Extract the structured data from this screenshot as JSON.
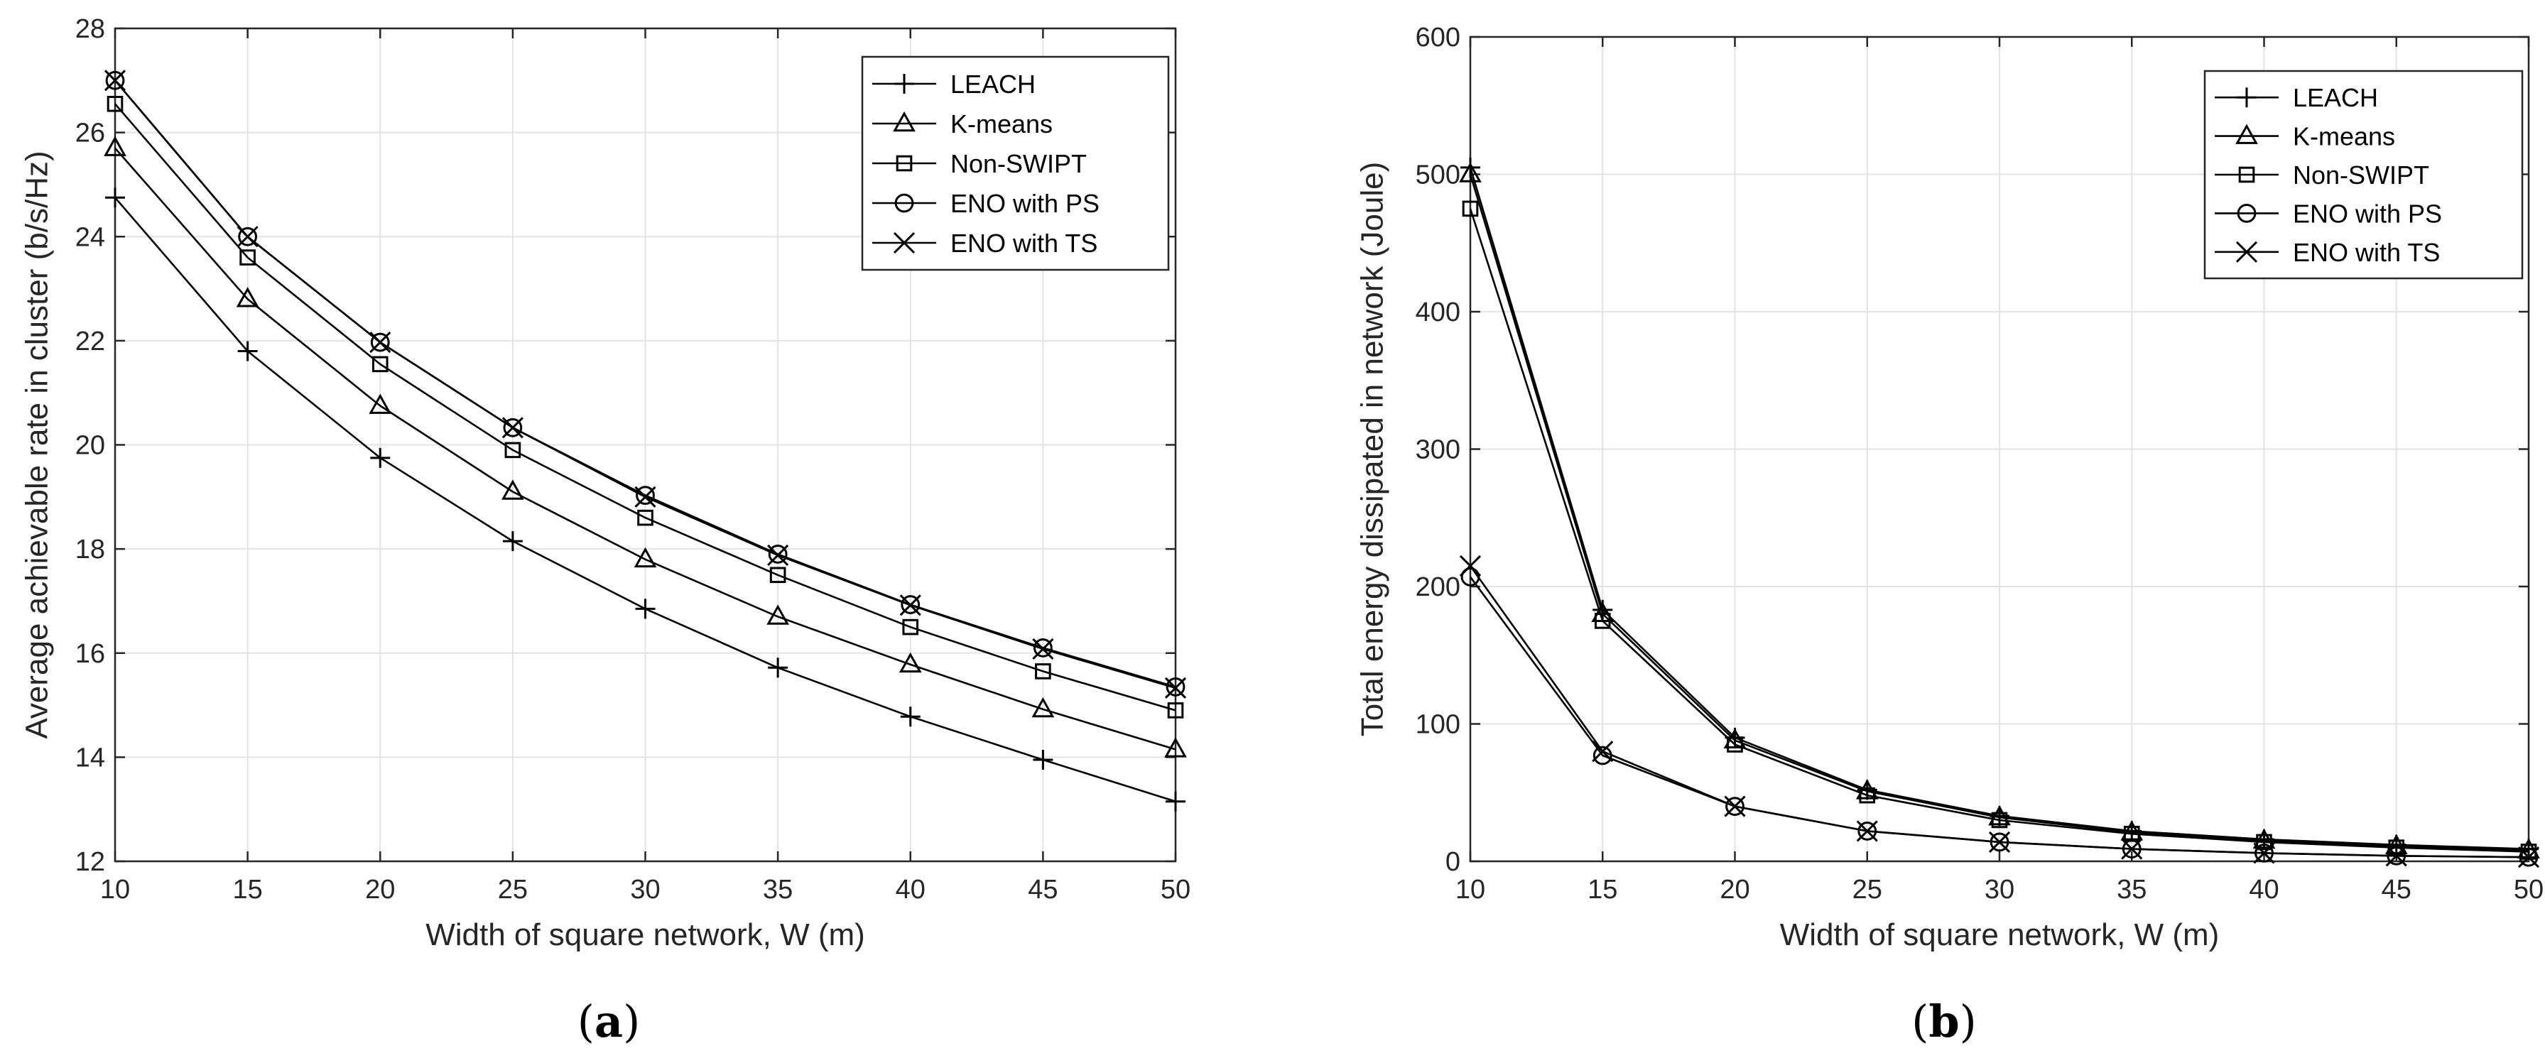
{
  "colors": {
    "line": "#000000",
    "grid": "#e3e3e3",
    "axis": "#262626",
    "background": "#ffffff"
  },
  "chart_data": [
    {
      "type": "line",
      "caption_open": "(",
      "caption_letter": "a",
      "caption_close": ")",
      "xlabel": "Width of square network, W (m)",
      "ylabel": "Average achievable rate in cluster (b/s/Hz)",
      "xlim": [
        10,
        50
      ],
      "ylim": [
        12,
        28
      ],
      "xticks": [
        10,
        15,
        20,
        25,
        30,
        35,
        40,
        45,
        50
      ],
      "yticks": [
        12,
        14,
        16,
        18,
        20,
        22,
        24,
        26,
        28
      ],
      "grid": true,
      "legend_position": "top-right",
      "x": [
        10,
        15,
        20,
        25,
        30,
        35,
        40,
        45,
        50
      ],
      "series": [
        {
          "name": "LEACH",
          "marker": "plus",
          "values": [
            24.75,
            21.8,
            19.75,
            18.15,
            16.85,
            15.72,
            14.78,
            13.95,
            13.15
          ]
        },
        {
          "name": "K-means",
          "marker": "triangle",
          "values": [
            25.7,
            22.8,
            20.75,
            19.1,
            17.8,
            16.7,
            15.78,
            14.92,
            14.15
          ]
        },
        {
          "name": "Non-SWIPT",
          "marker": "square",
          "values": [
            26.55,
            23.6,
            21.55,
            19.9,
            18.6,
            17.5,
            16.5,
            15.65,
            14.9
          ]
        },
        {
          "name": "ENO with PS",
          "marker": "circle",
          "values": [
            27.0,
            24.0,
            21.97,
            20.33,
            19.03,
            17.9,
            16.93,
            16.1,
            15.35
          ]
        },
        {
          "name": "ENO with TS",
          "marker": "x",
          "values": [
            27.0,
            24.0,
            21.97,
            20.33,
            19.0,
            17.88,
            16.92,
            16.08,
            15.33
          ]
        }
      ]
    },
    {
      "type": "line",
      "caption_open": "(",
      "caption_letter": "b",
      "caption_close": ")",
      "xlabel": "Width of square network, W (m)",
      "ylabel": "Total energy dissipated in network (Joule)",
      "xlim": [
        10,
        50
      ],
      "ylim": [
        0,
        600
      ],
      "xticks": [
        10,
        15,
        20,
        25,
        30,
        35,
        40,
        45,
        50
      ],
      "yticks": [
        0,
        100,
        200,
        300,
        400,
        500,
        600
      ],
      "grid": true,
      "legend_position": "top-right",
      "x": [
        10,
        15,
        20,
        25,
        30,
        35,
        40,
        45,
        50
      ],
      "series": [
        {
          "name": "LEACH",
          "marker": "plus",
          "values": [
            505,
            183,
            90,
            52,
            33,
            22,
            16,
            12,
            9
          ]
        },
        {
          "name": "K-means",
          "marker": "triangle",
          "values": [
            500,
            180,
            88,
            51,
            32,
            21,
            15,
            11,
            8
          ]
        },
        {
          "name": "Non-SWIPT",
          "marker": "square",
          "values": [
            475,
            175,
            85,
            48,
            30,
            20,
            14,
            10,
            7
          ]
        },
        {
          "name": "ENO with PS",
          "marker": "circle",
          "values": [
            207,
            77,
            40,
            22,
            14,
            9,
            6,
            4,
            3
          ]
        },
        {
          "name": "ENO with TS",
          "marker": "x",
          "values": [
            215,
            80,
            40,
            22,
            14,
            9,
            6,
            4,
            3
          ]
        }
      ]
    }
  ]
}
